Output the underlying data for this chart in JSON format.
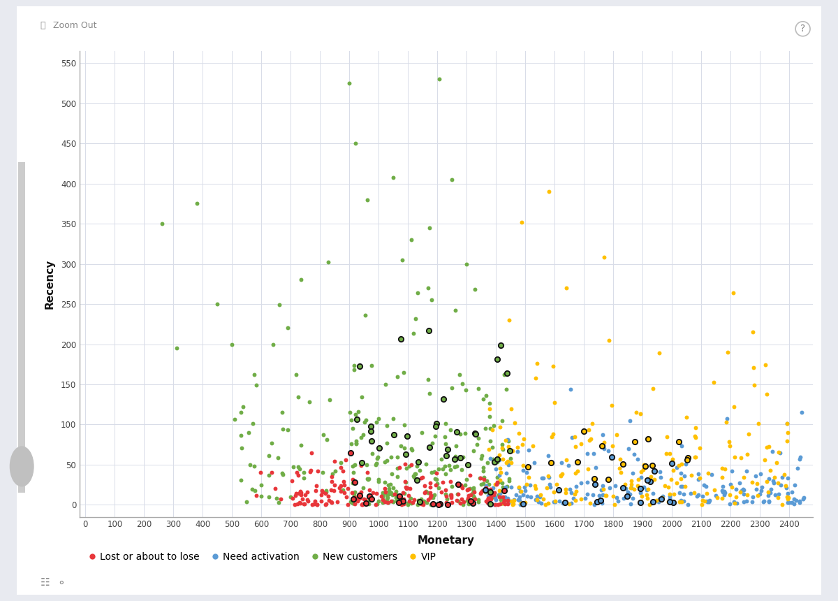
{
  "xlabel": "Monetary",
  "ylabel": "Recency",
  "xlim": [
    -20,
    2480
  ],
  "ylim": [
    -15,
    565
  ],
  "xticks": [
    0,
    100,
    200,
    300,
    400,
    500,
    600,
    700,
    800,
    900,
    1000,
    1100,
    1200,
    1300,
    1400,
    1500,
    1600,
    1700,
    1800,
    1900,
    2000,
    2100,
    2200,
    2300,
    2400
  ],
  "yticks": [
    0,
    50,
    100,
    150,
    200,
    250,
    300,
    350,
    400,
    450,
    500,
    550
  ],
  "background_color": "#e8eaf0",
  "plot_background": "#ffffff",
  "grid_color": "#d8dce8",
  "colors": {
    "lost": "#e8363a",
    "need_activation": "#5b9bd5",
    "new_customers": "#70ad47",
    "vip": "#ffc000"
  },
  "outline_color": "#111111",
  "legend": [
    {
      "label": "Lost or about to lose",
      "color": "#e8363a"
    },
    {
      "label": "Need activation",
      "color": "#5b9bd5"
    },
    {
      "label": "New customers",
      "color": "#70ad47"
    },
    {
      "label": "VIP",
      "color": "#ffc000"
    }
  ],
  "zoom_out_text": "Zoom Out",
  "seed": 42
}
